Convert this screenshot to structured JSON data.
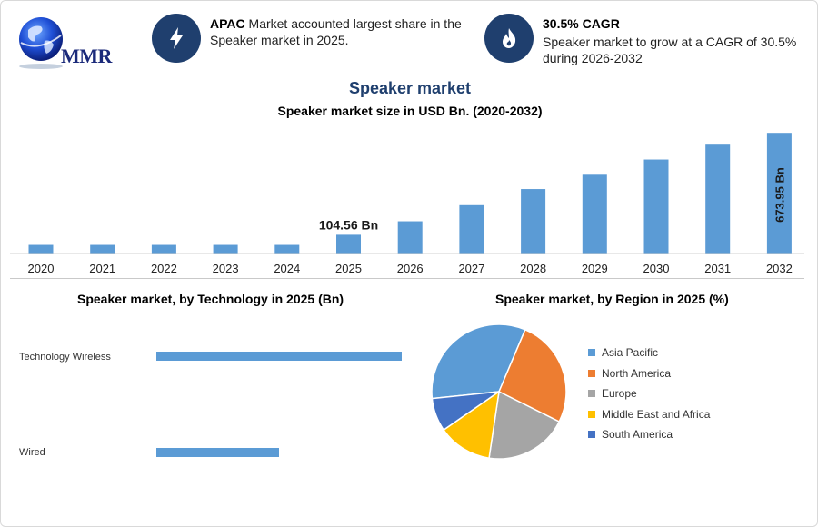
{
  "logo": {
    "text": "MMR"
  },
  "info": [
    {
      "icon": "lightning-icon",
      "bold": "APAC",
      "text": " Market accounted largest share in the Speaker market in 2025."
    },
    {
      "icon": "flame-icon",
      "bold": "30.5% CAGR",
      "text": "Speaker market to grow at a CAGR of 30.5% during 2026-2032"
    }
  ],
  "header": {
    "title": "Speaker market",
    "subtitle": "Speaker market size in USD Bn. (2020-2032)"
  },
  "technology": {
    "title": "Speaker market, by Technology in 2025 (Bn)",
    "labels": [
      "Technology Wireless",
      "Wired"
    ]
  },
  "region": {
    "title": "Speaker market, by Region in 2025 (%)"
  },
  "colors": {
    "bar": "#5b9bd5",
    "accent": "#1f3f6e"
  },
  "chart_data": [
    {
      "type": "bar",
      "title": "Speaker market size in USD Bn. (2020-2032)",
      "categories": [
        "2020",
        "2021",
        "2022",
        "2023",
        "2024",
        "2025",
        "2026",
        "2027",
        "2028",
        "2029",
        "2030",
        "2031",
        "2032"
      ],
      "values": [
        48,
        48,
        48,
        48,
        48,
        104.56,
        180,
        270,
        360,
        440,
        525,
        608,
        673.95
      ],
      "annotations": [
        {
          "category": "2025",
          "text": "104.56 Bn"
        },
        {
          "category": "2032",
          "text": "673.95 Bn"
        }
      ],
      "ylim": [
        0,
        680
      ],
      "grid": false
    },
    {
      "type": "bar",
      "orientation": "horizontal",
      "title": "Speaker market, by Technology in 2025 (Bn)",
      "categories": [
        "Technology Wireless",
        "Wired"
      ],
      "values": [
        70,
        35
      ]
    },
    {
      "type": "pie",
      "title": "Speaker market, by Region in 2025 (%)",
      "labels": [
        "Asia Pacific",
        "North America",
        "Europe",
        "Middle East and Africa",
        "South America"
      ],
      "values": [
        33,
        26,
        20,
        13,
        8
      ],
      "colors": [
        "#5b9bd5",
        "#ed7d31",
        "#a5a5a5",
        "#ffc000",
        "#4472c4"
      ],
      "legend": "right"
    }
  ]
}
